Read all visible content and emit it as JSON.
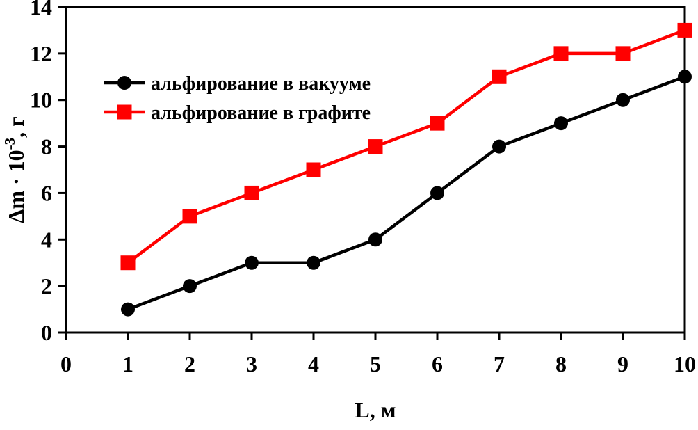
{
  "colors": {
    "background": "#ffffff",
    "axis": "#000000",
    "series_vacuum": "#000000",
    "series_graphite": "#ff0000"
  },
  "chart_data": {
    "type": "line",
    "x": [
      1,
      2,
      3,
      4,
      5,
      6,
      7,
      8,
      9,
      10
    ],
    "series": [
      {
        "name": "альфирование в вакууме",
        "marker": "circle",
        "color": "#000000",
        "values": [
          1,
          2,
          3,
          3,
          4,
          6,
          8,
          9,
          10,
          11
        ]
      },
      {
        "name": "альфирование в графите",
        "marker": "square",
        "color": "#ff0000",
        "values": [
          3,
          5,
          6,
          7,
          8,
          9,
          11,
          12,
          12,
          13
        ]
      }
    ],
    "title": "",
    "xlabel": "L, м",
    "ylabel": "Δm · 10⁻³, г",
    "ylabel_parts": {
      "base": "Δm · 10",
      "sup": "-3",
      "tail": ", г"
    },
    "xlim": [
      0,
      10
    ],
    "ylim": [
      0,
      14
    ],
    "xticks": [
      0,
      1,
      2,
      3,
      4,
      5,
      6,
      7,
      8,
      9,
      10
    ],
    "yticks": [
      0,
      2,
      4,
      6,
      8,
      10,
      12,
      14
    ],
    "grid": false,
    "legend_position": "upper-left"
  }
}
